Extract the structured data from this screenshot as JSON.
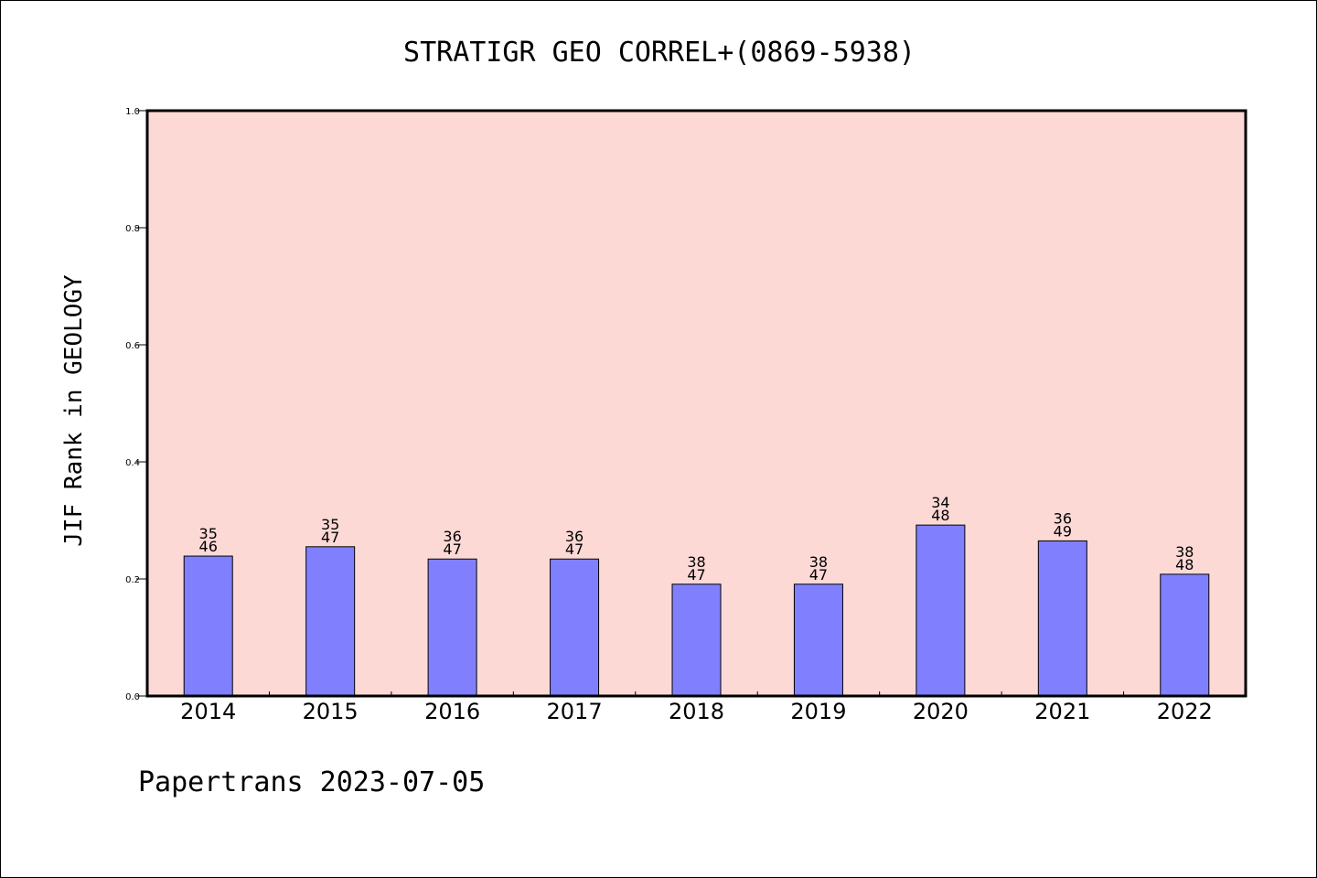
{
  "chart_data": {
    "type": "bar",
    "title": "STRATIGR GEO CORREL+(0869-5938)",
    "ylabel": "JIF Rank in GEOLOGY",
    "xlabel": "",
    "footer": "Papertrans 2023-07-05",
    "categories": [
      "2014",
      "2015",
      "2016",
      "2017",
      "2018",
      "2019",
      "2020",
      "2021",
      "2022"
    ],
    "values": [
      0.239,
      0.255,
      0.234,
      0.234,
      0.191,
      0.191,
      0.292,
      0.265,
      0.208
    ],
    "bar_labels": [
      [
        "35",
        "46"
      ],
      [
        "35",
        "47"
      ],
      [
        "36",
        "47"
      ],
      [
        "36",
        "47"
      ],
      [
        "38",
        "47"
      ],
      [
        "38",
        "47"
      ],
      [
        "34",
        "48"
      ],
      [
        "36",
        "49"
      ],
      [
        "38",
        "48"
      ]
    ],
    "ylim": [
      0.0,
      1.0
    ],
    "yticks": [
      "0.0",
      "0.2",
      "0.4",
      "0.6",
      "0.8",
      "1.0"
    ],
    "grid": false,
    "legend": "none",
    "colors": {
      "plot_background": "#fdd9d6",
      "bar_fill": "#8080ff",
      "bar_edge": "#000000",
      "axis": "#000000"
    }
  }
}
